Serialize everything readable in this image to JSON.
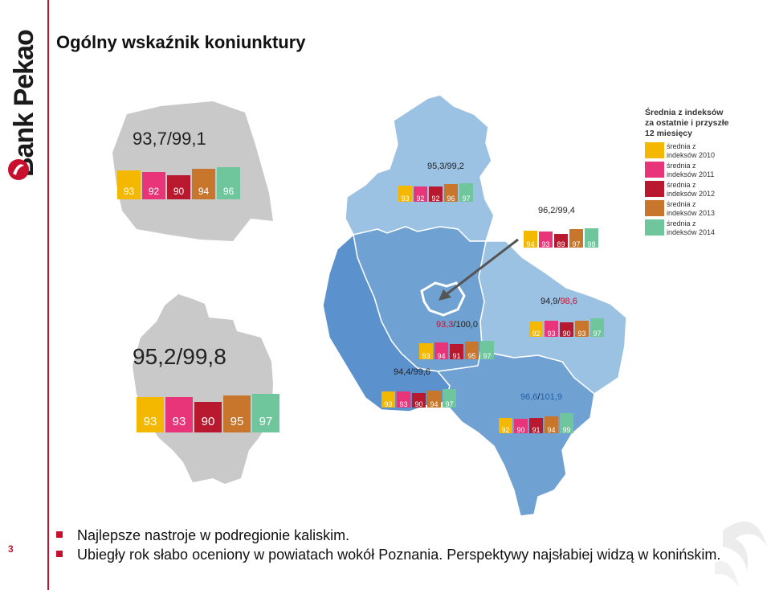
{
  "brand": {
    "name": "Bank Pekao",
    "slide_number": "3"
  },
  "title": "Ogólny wskaźnik koniunktury",
  "colors": {
    "y2010": "#f5b800",
    "y2011": "#e8357a",
    "y2012": "#b8192e",
    "y2013": "#c8762c",
    "y2014": "#6fc59c",
    "accent": "#c8102e"
  },
  "legend": {
    "title_lines": [
      "Średnia z indeksów",
      "za ostatnie i przyszłe",
      "12 miesięcy"
    ],
    "items": [
      {
        "label_line1": "średnia z",
        "label_line2": "indeksów 2010",
        "color_key": "y2010"
      },
      {
        "label_line1": "średnia z",
        "label_line2": "indeksów 2011",
        "color_key": "y2011"
      },
      {
        "label_line1": "średnia z",
        "label_line2": "indeksów 2012",
        "color_key": "y2012"
      },
      {
        "label_line1": "średnia z",
        "label_line2": "indeksów 2013",
        "color_key": "y2013"
      },
      {
        "label_line1": "średnia z",
        "label_line2": "indeksów 2014",
        "color_key": "y2014"
      }
    ]
  },
  "poland": {
    "label": "93,7/99,1",
    "values": [
      "93",
      "92",
      "90",
      "94",
      "96"
    ]
  },
  "wielkopolska": {
    "label": "95,2/99,8",
    "values": [
      "93",
      "93",
      "90",
      "95",
      "97"
    ]
  },
  "subregions": {
    "pilski": {
      "label": "95,3/99,2",
      "values": [
        "93",
        "92",
        "92",
        "96",
        "97"
      ]
    },
    "poznan_city": {
      "label": "96,2/99,4",
      "values": [
        "94",
        "93",
        "89",
        "97",
        "98"
      ]
    },
    "koninski": {
      "label_a": "94,9/",
      "label_b": "98,6",
      "values": [
        "92",
        "93",
        "90",
        "93",
        "97"
      ]
    },
    "poznanski": {
      "label_a": "93,3",
      "label_b": "/100,0",
      "values": [
        "93",
        "94",
        "91",
        "95",
        "97"
      ]
    },
    "leszczynski": {
      "label": "94,4/99,6",
      "values": [
        "93",
        "93",
        "90",
        "94",
        "97"
      ]
    },
    "kaliski": {
      "label_a": "96,6",
      "label_b": "/",
      "label_c": "101,9",
      "values": [
        "92",
        "90",
        "91",
        "94",
        "99"
      ]
    }
  },
  "bullets": [
    "Najlepsze nastroje w podregionie kaliskim.",
    "Ubiegły rok słabo oceniony w powiatach wokół Poznania. Perspektywy najsłabiej widzą w konińskim."
  ]
}
